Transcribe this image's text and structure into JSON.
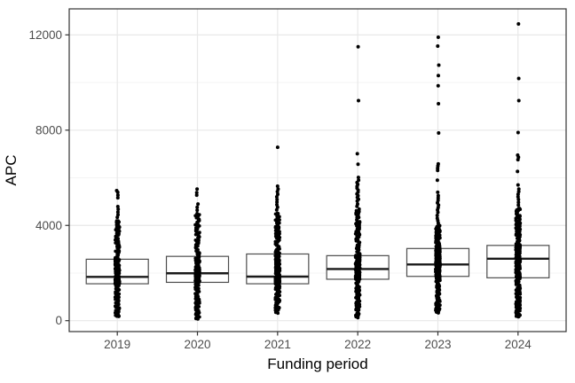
{
  "chart_data": {
    "type": "boxplot",
    "title": "",
    "xlabel": "Funding period",
    "ylabel": "APC",
    "legend": "none",
    "grid": "on",
    "categories": [
      "2019",
      "2020",
      "2021",
      "2022",
      "2023",
      "2024"
    ],
    "y_axis": {
      "min": 0,
      "max": 12600,
      "major_ticks": [
        0,
        4000,
        8000,
        12000
      ],
      "tick_labels": [
        "0",
        "4000",
        "8000",
        "12000"
      ],
      "minor_gridlines": [
        2000,
        6000,
        10000
      ]
    },
    "series": [
      {
        "category": "2019",
        "q1": 1550,
        "median": 1840,
        "q3": 2580,
        "whisker_low": 150,
        "whisker_high": 4120,
        "points_min": 150,
        "dense_top": 4230,
        "column_points": 270,
        "outliers": [
          4340,
          4450,
          4560,
          4680,
          4790,
          5160,
          5270,
          5390,
          5460
        ]
      },
      {
        "category": "2020",
        "q1": 1610,
        "median": 1990,
        "q3": 2700,
        "whisker_low": 30,
        "whisker_high": 4330,
        "points_min": 30,
        "dense_top": 4530,
        "column_points": 280,
        "outliers": [
          4640,
          4760,
          4900,
          5270,
          5380,
          5530
        ]
      },
      {
        "category": "2021",
        "q1": 1550,
        "median": 1850,
        "q3": 2800,
        "whisker_low": 320,
        "whisker_high": 4530,
        "points_min": 320,
        "dense_top": 4530,
        "column_points": 300,
        "outliers": [
          4650,
          4760,
          4870,
          4980,
          5090,
          5200,
          5310,
          5420,
          5530,
          5646,
          7280
        ]
      },
      {
        "category": "2022",
        "q1": 1740,
        "median": 2170,
        "q3": 2730,
        "whisker_low": 120,
        "whisker_high": 4210,
        "points_min": 120,
        "dense_top": 4700,
        "column_points": 320,
        "outliers": [
          4800,
          4900,
          5022,
          5100,
          5170,
          5250,
          5320,
          5400,
          5480,
          5560,
          5640,
          5720,
          5800,
          5900,
          6015,
          6570,
          7010,
          9240,
          11500
        ]
      },
      {
        "category": "2023",
        "q1": 1860,
        "median": 2360,
        "q3": 3030,
        "whisker_low": 320,
        "whisker_high": 4650,
        "points_min": 320,
        "dense_top": 4000,
        "column_points": 380,
        "outliers": [
          4100,
          4200,
          4300,
          4420,
          4550,
          4650,
          4750,
          4850,
          4950,
          5050,
          5150,
          5250,
          5390,
          5900,
          6310,
          6400,
          6500,
          6580,
          7880,
          9110,
          9860,
          10290,
          10730,
          11530,
          11900
        ]
      },
      {
        "category": "2024",
        "q1": 1800,
        "median": 2600,
        "q3": 3160,
        "whisker_low": 130,
        "whisker_high": 5150,
        "points_min": 130,
        "dense_top": 4750,
        "column_points": 360,
        "outliers": [
          4850,
          4970,
          5090,
          5200,
          5310,
          5420,
          5530,
          5700,
          6264,
          6760,
          6860,
          6950,
          7900,
          9240,
          10170,
          12460
        ]
      }
    ],
    "style": {
      "background": "#ffffff",
      "panel_border": "#333333",
      "grid_major": "#e8e8e8",
      "grid_minor": "#f4f4f4",
      "box_stroke": "#4d4d4d",
      "box_fill": "#ffffff",
      "median_stroke": "#1a1a1a",
      "point_color": "#000000",
      "tick_color": "#333333",
      "tick_label_color": "#4d4d4d",
      "axis_title_color": "#000000"
    }
  }
}
